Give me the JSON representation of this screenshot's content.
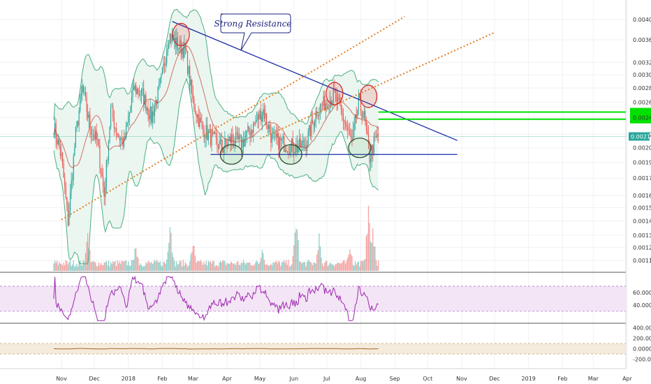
{
  "chart_data": {
    "type": "candlestick",
    "annotation": "Strong Resistance",
    "price_axis": {
      "ticks": [
        "0.004000",
        "0.003600",
        "0.003200",
        "0.003000",
        "0.002800",
        "0.002600",
        "0.002400",
        "0.002200",
        "0.002050",
        "0.001900",
        "0.001750",
        "0.001600",
        "0.001500",
        "0.001400",
        "0.001300",
        "0.001220",
        "0.001140"
      ],
      "tick_values": [
        0.004,
        0.0036,
        0.0032,
        0.003,
        0.0028,
        0.0026,
        0.0024,
        0.0022,
        0.00205,
        0.0019,
        0.00175,
        0.0016,
        0.0015,
        0.0014,
        0.0013,
        0.00122,
        0.00114
      ],
      "scale": "log",
      "range": [
        0.0011,
        0.0042
      ],
      "current_price": "0.002175",
      "current_value": 0.002175
    },
    "rsi_axis": {
      "ticks": [
        "60.0000",
        "40.0000"
      ],
      "tick_values": [
        60,
        40
      ],
      "range": [
        12,
        90
      ],
      "band": [
        30,
        70
      ]
    },
    "cci_axis": {
      "ticks": [
        "400.0000",
        "200.0000",
        "0.0000",
        "-200.0000"
      ],
      "tick_values": [
        400,
        200,
        0,
        -200
      ],
      "range": [
        -380,
        460
      ],
      "band": [
        -100,
        100
      ]
    },
    "time_axis": {
      "labels": [
        "Nov",
        "Dec",
        "2018",
        "Feb",
        "Mar",
        "Apr",
        "May",
        "Jun",
        "Jul",
        "Aug",
        "Sep",
        "Oct",
        "Nov",
        "Dec",
        "2019",
        "Feb",
        "Mar",
        "Apr"
      ],
      "dates": [
        "2017-11-01",
        "2017-12-01",
        "2018-01-01",
        "2018-02-01",
        "2018-03-01",
        "2018-04-01",
        "2018-05-01",
        "2018-06-01",
        "2018-07-01",
        "2018-08-01",
        "2018-09-01",
        "2018-10-01",
        "2018-11-01",
        "2018-12-01",
        "2019-01-01",
        "2019-02-01",
        "2019-03-01",
        "2019-04-01"
      ]
    },
    "price_waypoints": [
      [
        "2017-10-25",
        0.0023
      ],
      [
        "2017-11-01",
        0.00195
      ],
      [
        "2017-11-07",
        0.0014
      ],
      [
        "2017-11-14",
        0.0022
      ],
      [
        "2017-11-20",
        0.0028
      ],
      [
        "2017-11-27",
        0.0023
      ],
      [
        "2017-12-04",
        0.0021
      ],
      [
        "2017-12-10",
        0.0016
      ],
      [
        "2017-12-16",
        0.0025
      ],
      [
        "2017-12-22",
        0.0022
      ],
      [
        "2017-12-28",
        0.0021
      ],
      [
        "2018-01-06",
        0.0028
      ],
      [
        "2018-01-14",
        0.0027
      ],
      [
        "2018-01-22",
        0.0024
      ],
      [
        "2018-01-31",
        0.0029
      ],
      [
        "2018-02-07",
        0.0037
      ],
      [
        "2018-02-15",
        0.0035
      ],
      [
        "2018-02-22",
        0.0034
      ],
      [
        "2018-03-01",
        0.0026
      ],
      [
        "2018-03-08",
        0.0023
      ],
      [
        "2018-03-18",
        0.00215
      ],
      [
        "2018-03-28",
        0.00205
      ],
      [
        "2018-04-05",
        0.00215
      ],
      [
        "2018-04-14",
        0.0021
      ],
      [
        "2018-04-25",
        0.0023
      ],
      [
        "2018-05-04",
        0.0025
      ],
      [
        "2018-05-12",
        0.00215
      ],
      [
        "2018-05-22",
        0.0021
      ],
      [
        "2018-06-04",
        0.00205
      ],
      [
        "2018-06-12",
        0.0021
      ],
      [
        "2018-06-22",
        0.0025
      ],
      [
        "2018-06-30",
        0.0026
      ],
      [
        "2018-07-08",
        0.0027
      ],
      [
        "2018-07-16",
        0.0024
      ],
      [
        "2018-07-24",
        0.0021
      ],
      [
        "2018-07-30",
        0.0026
      ],
      [
        "2018-08-04",
        0.0024
      ],
      [
        "2018-08-09",
        0.00195
      ],
      [
        "2018-08-13",
        0.0021
      ],
      [
        "2018-08-17",
        0.00218
      ]
    ],
    "volume_spikes": [
      [
        "2017-11-25",
        0.6
      ],
      [
        "2018-01-08",
        0.45
      ],
      [
        "2018-02-08",
        0.85
      ],
      [
        "2018-03-01",
        0.5
      ],
      [
        "2018-05-03",
        0.4
      ],
      [
        "2018-06-03",
        0.9
      ],
      [
        "2018-06-24",
        0.55
      ],
      [
        "2018-07-22",
        0.5
      ],
      [
        "2018-08-08",
        1.0
      ],
      [
        "2018-08-12",
        0.7
      ]
    ],
    "trend_lines": [
      {
        "name": "descending-resistance",
        "color": "#1a2aa8",
        "style": "solid",
        "points": [
          [
            "2018-02-10",
            0.00396
          ],
          [
            "2018-10-28",
            0.00213
          ]
        ]
      },
      {
        "name": "horizontal-support",
        "color": "#1a2aa8",
        "style": "solid",
        "points": [
          [
            "2018-03-17",
            0.00198
          ],
          [
            "2018-10-28",
            0.00198
          ]
        ]
      },
      {
        "name": "ascending-channel-lower",
        "color": "#e67e22",
        "style": "dotted",
        "points": [
          [
            "2017-11-01",
            0.00141
          ],
          [
            "2018-09-10",
            0.00406
          ]
        ]
      },
      {
        "name": "ascending-channel-upper",
        "color": "#e67e22",
        "style": "dotted",
        "points": [
          [
            "2018-05-01",
            0.00215
          ],
          [
            "2018-12-01",
            0.00374
          ]
        ]
      }
    ],
    "target_lines": [
      {
        "color": "#00e000",
        "value": 0.00247,
        "from": "2018-08-17"
      },
      {
        "color": "#00e000",
        "value": 0.00238,
        "from": "2018-08-17"
      }
    ],
    "circled_tops": [
      [
        "2018-02-18",
        0.0037
      ],
      [
        "2018-07-08",
        0.00272
      ],
      [
        "2018-08-08",
        0.00268
      ]
    ],
    "circled_bottoms": [
      [
        "2018-04-05",
        0.00198
      ],
      [
        "2018-05-29",
        0.00198
      ],
      [
        "2018-07-31",
        0.00205
      ]
    ],
    "colors": {
      "up": "#26a69a",
      "down": "#ef5350",
      "bollinger": "#4caf80",
      "bollinger_fill": "#e6f4ec",
      "ma": "#c0392b",
      "rsi": "#9c27b0",
      "rsi_band": "#f3e5f5",
      "cci": "#a06b24",
      "cci_band": "#f5ebdc",
      "price_badge": "#26a69a",
      "target_badge": "#00e000"
    }
  }
}
